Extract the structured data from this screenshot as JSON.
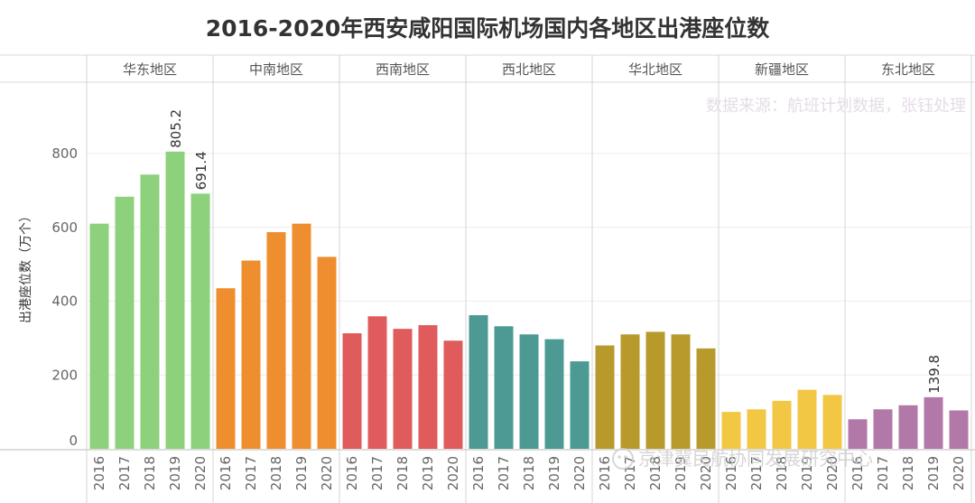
{
  "chart_data": {
    "type": "bar",
    "title": "2016-2020年西安咸阳国际机场国内各地区出港座位数",
    "ylabel": "出港座位数（万个）",
    "xlabel": "",
    "ylim": [
      0,
      960
    ],
    "yticks": [
      0,
      200,
      400,
      600,
      800
    ],
    "years": [
      "2016",
      "2017",
      "2018",
      "2019",
      "2020"
    ],
    "source_note": "数据来源：航班计划数据，张钰处理",
    "watermark": "京津冀民航协同发展研究中心",
    "grid": "horizontal",
    "regions": [
      {
        "name": "华东地区",
        "color": "#8dd17c",
        "values": [
          610,
          683,
          743,
          805.2,
          691.4
        ],
        "labels": [
          "",
          "",
          "",
          "805.2",
          "691.4"
        ]
      },
      {
        "name": "中南地区",
        "color": "#ef8e2f",
        "values": [
          435,
          510,
          587,
          610,
          520
        ],
        "labels": [
          "",
          "",
          "",
          "",
          ""
        ]
      },
      {
        "name": "西南地区",
        "color": "#e05b5b",
        "values": [
          313,
          359,
          325,
          335,
          293
        ],
        "labels": [
          "",
          "",
          "",
          "",
          ""
        ]
      },
      {
        "name": "西北地区",
        "color": "#4d9a94",
        "values": [
          362,
          332,
          310,
          297,
          237
        ],
        "labels": [
          "",
          "",
          "",
          "",
          ""
        ]
      },
      {
        "name": "华北地区",
        "color": "#b89a2c",
        "values": [
          280,
          310,
          317,
          310,
          272
        ],
        "labels": [
          "",
          "",
          "",
          "",
          ""
        ]
      },
      {
        "name": "新疆地区",
        "color": "#f2c744",
        "values": [
          100,
          107,
          130,
          160,
          146
        ],
        "labels": [
          "",
          "",
          "",
          "",
          ""
        ]
      },
      {
        "name": "东北地区",
        "color": "#b278a8",
        "values": [
          80,
          107,
          118,
          139.8,
          104
        ],
        "labels": [
          "",
          "",
          "",
          "139.8",
          ""
        ]
      }
    ]
  }
}
